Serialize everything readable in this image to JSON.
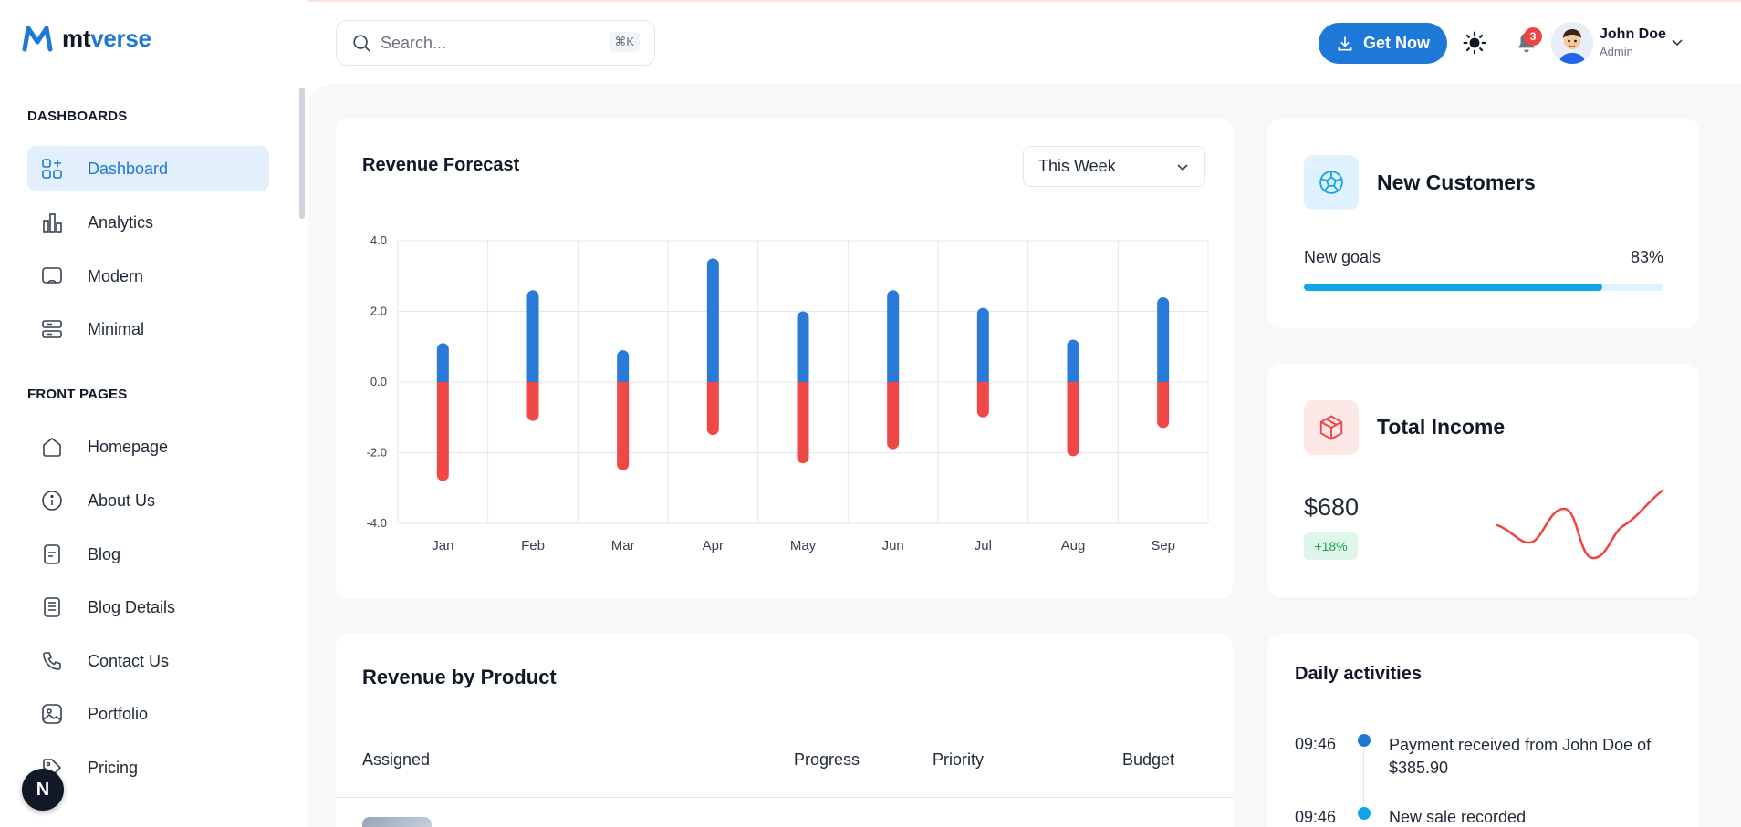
{
  "brand": {
    "prefix": "mt",
    "suffix": "verse"
  },
  "sidebar": {
    "sections": [
      {
        "title": "DASHBOARDS",
        "items": [
          {
            "label": "Dashboard",
            "icon": "dashboard-icon",
            "active": true
          },
          {
            "label": "Analytics",
            "icon": "analytics-icon"
          },
          {
            "label": "Modern",
            "icon": "modern-icon"
          },
          {
            "label": "Minimal",
            "icon": "minimal-icon"
          }
        ]
      },
      {
        "title": "FRONT PAGES",
        "items": [
          {
            "label": "Homepage",
            "icon": "home-icon"
          },
          {
            "label": "About Us",
            "icon": "info-icon"
          },
          {
            "label": "Blog",
            "icon": "blog-icon"
          },
          {
            "label": "Blog Details",
            "icon": "blog-details-icon"
          },
          {
            "label": "Contact Us",
            "icon": "phone-icon"
          },
          {
            "label": "Portfolio",
            "icon": "portfolio-icon"
          },
          {
            "label": "Pricing",
            "icon": "pricing-icon"
          }
        ]
      }
    ],
    "fab_label": "N"
  },
  "header": {
    "search_placeholder": "Search...",
    "search_shortcut": "⌘K",
    "cta_label": "Get Now",
    "notification_count": "3",
    "user": {
      "name": "John Doe",
      "role": "Admin"
    }
  },
  "revenue_forecast": {
    "title": "Revenue Forecast",
    "period": "This Week"
  },
  "chart_data": {
    "type": "bar",
    "categories": [
      "Jan",
      "Feb",
      "Mar",
      "Apr",
      "May",
      "Jun",
      "Jul",
      "Aug",
      "Sep"
    ],
    "series": [
      {
        "values": [
          1.1,
          2.6,
          0.9,
          3.5,
          2.0,
          2.6,
          2.1,
          1.2,
          2.4
        ],
        "color": "#2a7ad9"
      },
      {
        "values": [
          -2.8,
          -1.1,
          -2.5,
          -1.5,
          -2.3,
          -1.9,
          -1.0,
          -2.1,
          -1.3
        ],
        "color": "#f04747"
      }
    ],
    "yticks": [
      "4.0",
      "2.0",
      "0.0",
      "-2.0",
      "-4.0"
    ],
    "ylim": [
      -4,
      4
    ],
    "stacked": true,
    "grid": true
  },
  "new_customers": {
    "title": "New Customers",
    "goals_label": "New goals",
    "goals_percent": "83%",
    "goals_value": 0.83,
    "accent": "#10a5e9"
  },
  "total_income": {
    "title": "Total Income",
    "value": "$680",
    "change": "+18%",
    "sparkline_color": "#ef4444"
  },
  "revenue_by_product": {
    "title": "Revenue by Product",
    "columns": [
      "Assigned",
      "Progress",
      "Priority",
      "Budget"
    ]
  },
  "daily_activities": {
    "title": "Daily activities",
    "items": [
      {
        "time": "09:46",
        "text": "Payment received from John Doe of $385.90",
        "color": "#1e78d8"
      },
      {
        "time": "09:46",
        "text": "New sale recorded",
        "color": "#10a5e9"
      }
    ]
  }
}
